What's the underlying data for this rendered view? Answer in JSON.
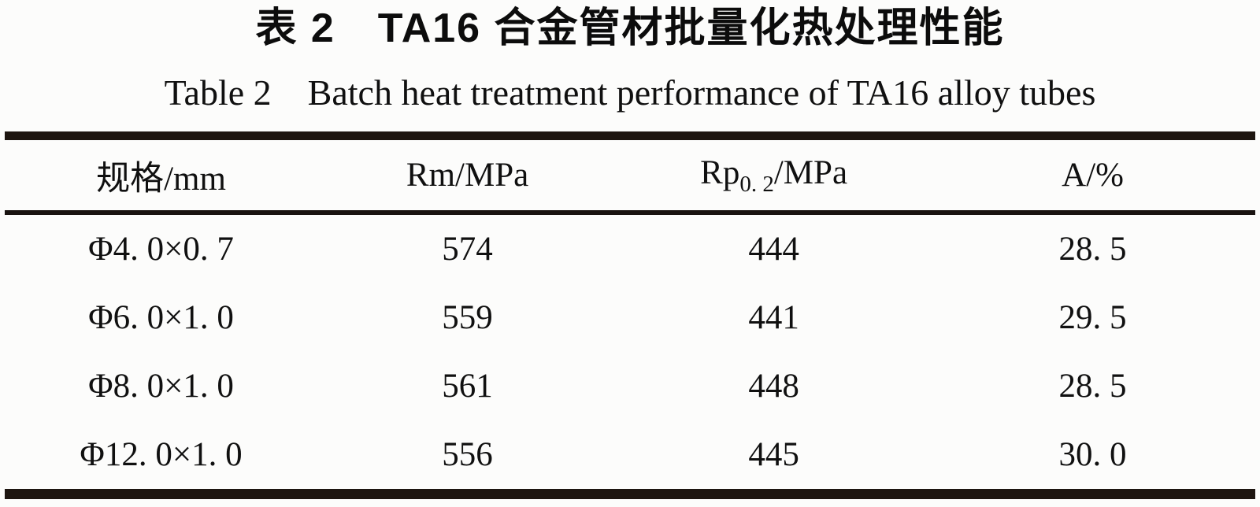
{
  "titles": {
    "zh": "表 2　TA16 合金管材批量化热处理性能",
    "en": "Table 2　Batch heat treatment performance of TA16 alloy tubes"
  },
  "table": {
    "columns": {
      "spec": "规格/mm",
      "rm": "Rm/MPa",
      "rp_base": "Rp",
      "rp_sub": "0. 2",
      "rp_rest": "/MPa",
      "a": "A/%"
    },
    "rows": [
      [
        "Φ4. 0×0. 7",
        "574",
        "444",
        "28. 5"
      ],
      [
        "Φ6. 0×1. 0",
        "559",
        "441",
        "29. 5"
      ],
      [
        "Φ8. 0×1. 0",
        "561",
        "448",
        "28. 5"
      ],
      [
        "Φ12. 0×1. 0",
        "556",
        "445",
        "30. 0"
      ]
    ]
  },
  "colors": {
    "rule": "#1d1510",
    "text": "#101010",
    "background": "#fcfcfb"
  }
}
